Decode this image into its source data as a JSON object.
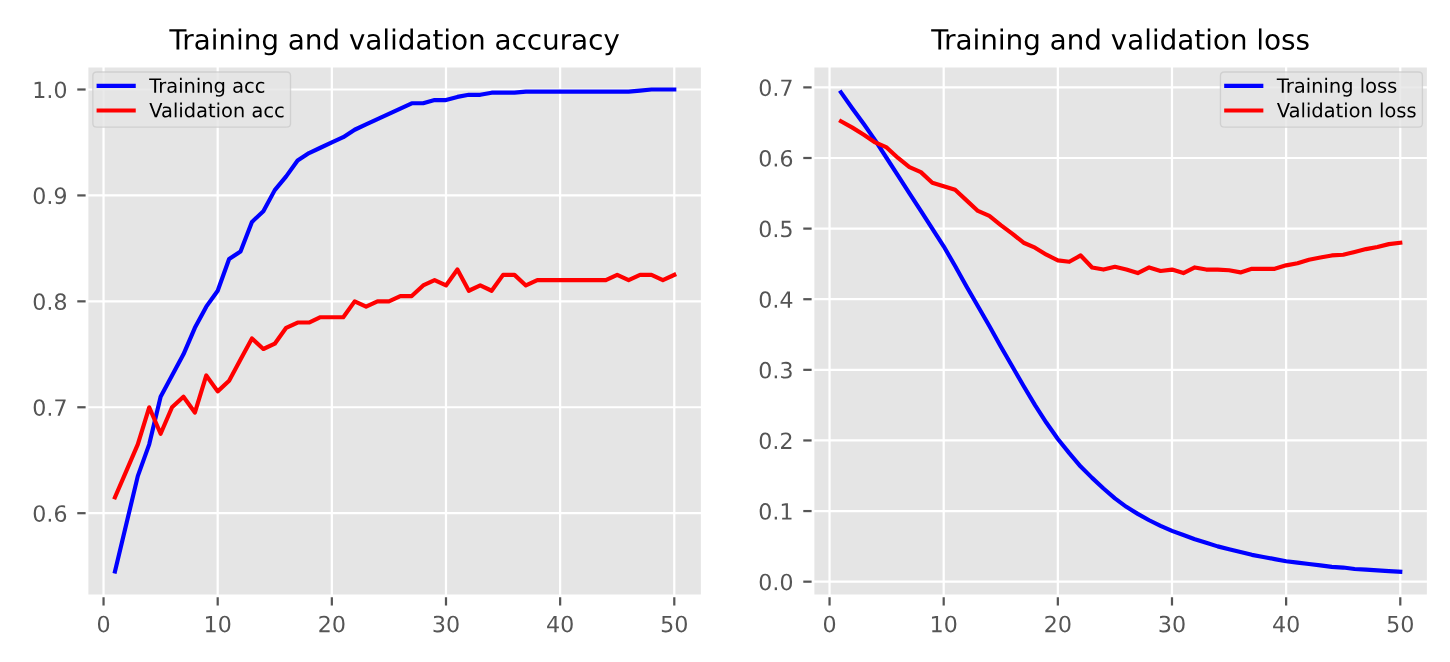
{
  "chart_data": [
    {
      "type": "line",
      "title": "Training and validation accuracy",
      "x": [
        1,
        2,
        3,
        4,
        5,
        6,
        7,
        8,
        9,
        10,
        11,
        12,
        13,
        14,
        15,
        16,
        17,
        18,
        19,
        20,
        21,
        22,
        23,
        24,
        25,
        26,
        27,
        28,
        29,
        30,
        31,
        32,
        33,
        34,
        35,
        36,
        37,
        38,
        39,
        40,
        41,
        42,
        43,
        44,
        45,
        46,
        47,
        48,
        49,
        50
      ],
      "series": [
        {
          "name": "Training acc",
          "color": "#0000ff",
          "values": [
            0.545,
            0.59,
            0.635,
            0.665,
            0.71,
            0.73,
            0.75,
            0.775,
            0.795,
            0.81,
            0.84,
            0.847,
            0.875,
            0.885,
            0.905,
            0.918,
            0.933,
            0.94,
            0.945,
            0.95,
            0.955,
            0.962,
            0.967,
            0.972,
            0.977,
            0.982,
            0.987,
            0.987,
            0.99,
            0.99,
            0.993,
            0.995,
            0.995,
            0.997,
            0.997,
            0.997,
            0.998,
            0.998,
            0.998,
            0.998,
            0.998,
            0.998,
            0.998,
            0.998,
            0.998,
            0.998,
            0.999,
            1.0,
            1.0,
            1.0
          ]
        },
        {
          "name": "Validation acc",
          "color": "#ff0000",
          "values": [
            0.615,
            0.64,
            0.665,
            0.7,
            0.675,
            0.7,
            0.71,
            0.695,
            0.73,
            0.715,
            0.725,
            0.745,
            0.765,
            0.755,
            0.76,
            0.775,
            0.78,
            0.78,
            0.785,
            0.785,
            0.785,
            0.8,
            0.795,
            0.8,
            0.8,
            0.805,
            0.805,
            0.815,
            0.82,
            0.815,
            0.83,
            0.81,
            0.815,
            0.81,
            0.825,
            0.825,
            0.815,
            0.82,
            0.82,
            0.82,
            0.82,
            0.82,
            0.82,
            0.82,
            0.825,
            0.82,
            0.825,
            0.825,
            0.82,
            0.825
          ]
        }
      ],
      "xlim": [
        -1.45,
        52.45
      ],
      "xticks": [
        0,
        10,
        20,
        30,
        40,
        50
      ],
      "ylim": [
        0.522,
        1.022
      ],
      "yticks": [
        0.6,
        0.7,
        0.8,
        0.9,
        {
          "value": 1.0,
          "label": "1.0"
        }
      ],
      "grid": true,
      "legend": "top left",
      "marker": "none",
      "line_style": "solid"
    },
    {
      "type": "line",
      "title": "Training and validation loss",
      "x": [
        1,
        2,
        3,
        4,
        5,
        6,
        7,
        8,
        9,
        10,
        11,
        12,
        13,
        14,
        15,
        16,
        17,
        18,
        19,
        20,
        21,
        22,
        23,
        24,
        25,
        26,
        27,
        28,
        29,
        30,
        31,
        32,
        33,
        34,
        35,
        36,
        37,
        38,
        39,
        40,
        41,
        42,
        43,
        44,
        45,
        46,
        47,
        48,
        49,
        50
      ],
      "series": [
        {
          "name": "Training loss",
          "color": "#0000ff",
          "values": [
            0.693,
            0.67,
            0.648,
            0.625,
            0.6,
            0.575,
            0.55,
            0.525,
            0.5,
            0.475,
            0.447,
            0.418,
            0.39,
            0.362,
            0.333,
            0.305,
            0.277,
            0.25,
            0.225,
            0.202,
            0.182,
            0.163,
            0.147,
            0.132,
            0.118,
            0.106,
            0.096,
            0.087,
            0.079,
            0.072,
            0.066,
            0.06,
            0.055,
            0.05,
            0.046,
            0.042,
            0.038,
            0.035,
            0.032,
            0.029,
            0.027,
            0.025,
            0.023,
            0.021,
            0.02,
            0.018,
            0.017,
            0.016,
            0.015,
            0.014
          ]
        },
        {
          "name": "Validation loss",
          "color": "#ff0000",
          "values": [
            0.652,
            0.643,
            0.633,
            0.622,
            0.615,
            0.6,
            0.587,
            0.58,
            0.565,
            0.56,
            0.555,
            0.54,
            0.525,
            0.518,
            0.505,
            0.493,
            0.48,
            0.473,
            0.463,
            0.455,
            0.453,
            0.462,
            0.445,
            0.442,
            0.446,
            0.442,
            0.437,
            0.445,
            0.44,
            0.442,
            0.437,
            0.445,
            0.442,
            0.442,
            0.441,
            0.438,
            0.443,
            0.443,
            0.443,
            0.448,
            0.451,
            0.456,
            0.459,
            0.462,
            0.463,
            0.467,
            0.471,
            0.474,
            0.478,
            0.48
          ]
        }
      ],
      "xlim": [
        -1.45,
        52.45
      ],
      "xticks": [
        0,
        10,
        20,
        30,
        40,
        50
      ],
      "ylim": [
        -0.02,
        0.73
      ],
      "yticks": [
        {
          "value": 0.0,
          "label": "0.0"
        },
        0.1,
        0.2,
        0.3,
        0.4,
        0.5,
        0.6,
        0.7
      ],
      "grid": true,
      "legend": "top right",
      "marker": "none",
      "line_style": "solid"
    }
  ]
}
